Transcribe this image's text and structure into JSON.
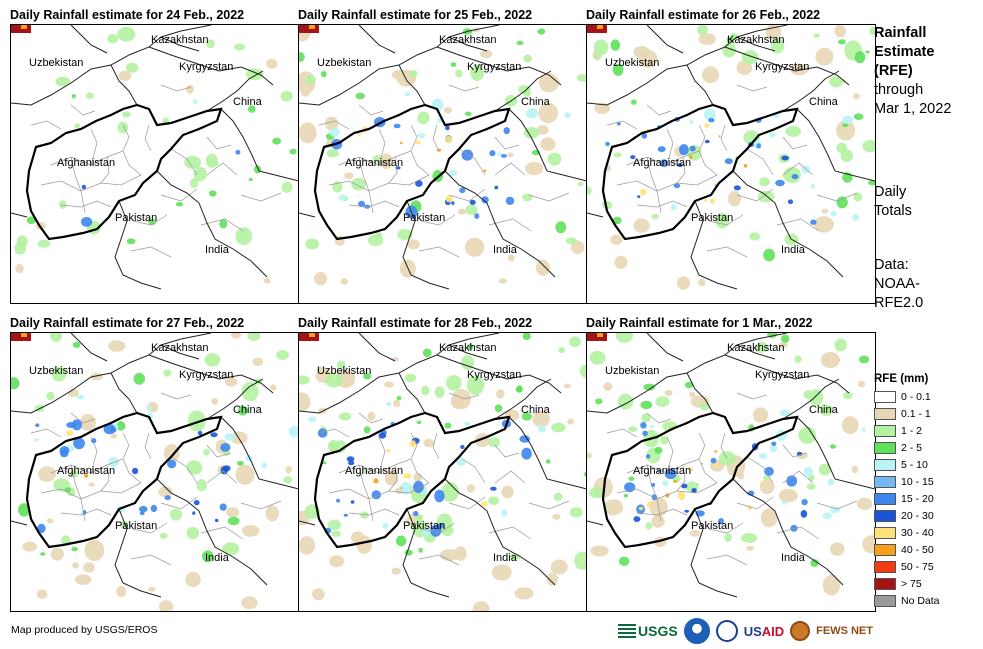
{
  "panels": [
    {
      "title": "Daily Rainfall estimate for 24 Feb., 2022",
      "key": "p0"
    },
    {
      "title": "Daily Rainfall estimate for 25 Feb., 2022",
      "key": "p1"
    },
    {
      "title": "Daily Rainfall estimate for 26 Feb., 2022",
      "key": "p2"
    },
    {
      "title": "Daily Rainfall estimate for 27 Feb., 2022",
      "key": "p3"
    },
    {
      "title": "Daily Rainfall estimate for 28 Feb., 2022",
      "key": "p4"
    },
    {
      "title": "Daily Rainfall estimate for 1 Mar., 2022",
      "key": "p5"
    }
  ],
  "map_labels": {
    "kazakhstan": "Kazakhstan",
    "uzbekistan": "Uzbekistan",
    "kyrgyzstan": "Kyrgyzstan",
    "china": "China",
    "afghanistan": "Afghanistan",
    "pakistan": "Pakistan",
    "india": "India"
  },
  "side_text": {
    "title_l1": "Rainfall",
    "title_l2": "Estimate",
    "title_l3": "(RFE)",
    "through_l1": "through",
    "through_l2": "Mar 1, 2022",
    "daily_l1": "Daily",
    "daily_l2": "Totals",
    "data_l1": "Data:",
    "data_l2": "NOAA-",
    "data_l3": "RFE2.0"
  },
  "legend": {
    "title": "RFE (mm)",
    "items": [
      {
        "label": "0 - 0.1",
        "color": "#ffffff"
      },
      {
        "label": "0.1 - 1",
        "color": "#e8d7b5"
      },
      {
        "label": "1 - 2",
        "color": "#b2f2a0"
      },
      {
        "label": "2 - 5",
        "color": "#5fe05a"
      },
      {
        "label": "5 - 10",
        "color": "#b8f4f6"
      },
      {
        "label": "10 - 15",
        "color": "#76b8f5"
      },
      {
        "label": "15 - 20",
        "color": "#3c86ee"
      },
      {
        "label": "20 - 30",
        "color": "#1a54d8"
      },
      {
        "label": "30 - 40",
        "color": "#fde27c"
      },
      {
        "label": "40 - 50",
        "color": "#f6a01c"
      },
      {
        "label": "50 - 75",
        "color": "#f03c10"
      },
      {
        "label": "> 75",
        "color": "#a51414"
      },
      {
        "label": "No Data",
        "color": "#9a9a9a"
      }
    ]
  },
  "credit": "Map produced by USGS/EROS",
  "logos": {
    "usgs": "USGS",
    "usaid_a": "US",
    "usaid_b": "AID",
    "fews": "FEWS NET"
  },
  "rain_intensity": {
    "p0": {
      "tan": 0.1,
      "green": 0.5,
      "blue": 0.05,
      "orange": 0.0
    },
    "p1": {
      "tan": 0.5,
      "green": 0.5,
      "blue": 0.5,
      "orange": 0.4
    },
    "p2": {
      "tan": 0.4,
      "green": 0.6,
      "blue": 0.55,
      "orange": 0.5
    },
    "p3": {
      "tan": 0.6,
      "green": 0.5,
      "blue": 0.6,
      "orange": 0.1
    },
    "p4": {
      "tan": 0.7,
      "green": 0.7,
      "blue": 0.5,
      "orange": 0.3
    },
    "p5": {
      "tan": 0.5,
      "green": 0.6,
      "blue": 0.6,
      "orange": 0.6
    }
  }
}
